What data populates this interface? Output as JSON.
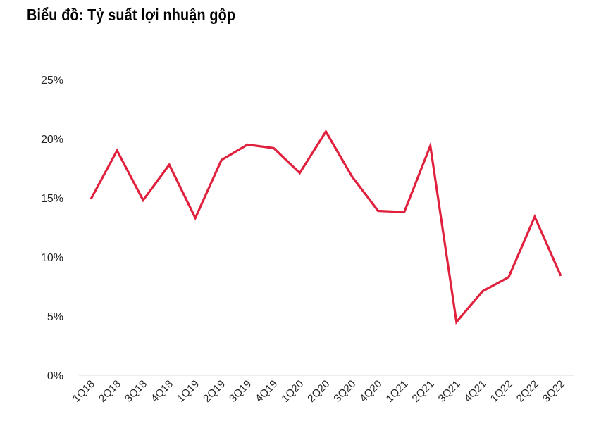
{
  "chart_data": {
    "type": "line",
    "title": "Biểu đồ: Tỷ suất lợi nhuận gộp",
    "xlabel": "",
    "ylabel": "",
    "categories": [
      "1Q18",
      "2Q18",
      "3Q18",
      "4Q18",
      "1Q19",
      "2Q19",
      "3Q19",
      "4Q19",
      "1Q20",
      "2Q20",
      "3Q20",
      "4Q20",
      "1Q21",
      "2Q21",
      "3Q21",
      "4Q21",
      "1Q22",
      "2Q22",
      "3Q22"
    ],
    "series": [
      {
        "name": "Tỷ suất lợi nhuận gộp",
        "color": "#e0203c",
        "values": [
          14.9,
          19.0,
          14.8,
          17.8,
          13.3,
          18.2,
          19.5,
          19.2,
          17.1,
          20.6,
          16.8,
          13.9,
          13.8,
          19.4,
          4.5,
          7.1,
          8.3,
          13.4,
          8.4
        ]
      }
    ],
    "ylim": [
      0,
      25
    ],
    "yticks": [
      0,
      5,
      10,
      15,
      20,
      25
    ],
    "ytick_labels": [
      "0%",
      "5%",
      "10%",
      "15%",
      "20%",
      "25%"
    ],
    "grid": false,
    "legend": "none"
  }
}
